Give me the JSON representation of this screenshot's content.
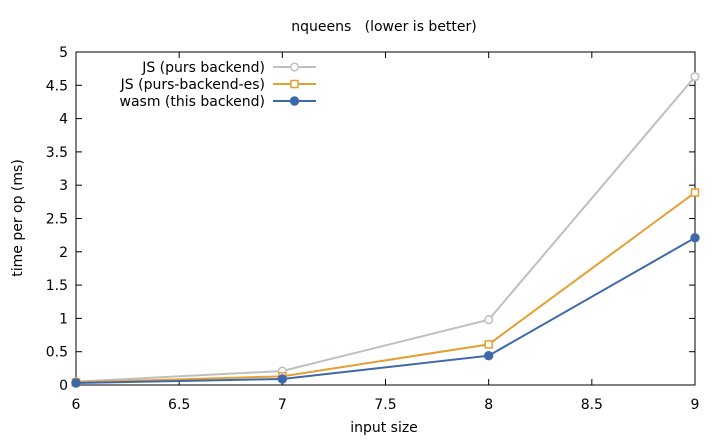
{
  "chart_data": {
    "type": "line",
    "title": "nqueens   (lower is better)",
    "xlabel": "input size",
    "ylabel": "time per op (ms)",
    "xlim": [
      6,
      9
    ],
    "ylim": [
      0,
      5
    ],
    "xticks": [
      "6",
      "6.5",
      "7",
      "7.5",
      "8",
      "8.5",
      "9"
    ],
    "yticks": [
      "0",
      "0.5",
      "1",
      "1.5",
      "2",
      "2.5",
      "3",
      "3.5",
      "4",
      "4.5",
      "5"
    ],
    "grid": false,
    "legend_position": "top-left",
    "series": [
      {
        "name": "JS (purs backend)",
        "x": [
          6,
          7,
          8,
          9
        ],
        "y": [
          0.05,
          0.21,
          0.98,
          4.63
        ],
        "color": "#bfbfbf",
        "marker": "circle-open"
      },
      {
        "name": "JS (purs-backend-es)",
        "x": [
          6,
          7,
          8,
          9
        ],
        "y": [
          0.04,
          0.13,
          0.61,
          2.89
        ],
        "color": "#e69f34",
        "marker": "square-open"
      },
      {
        "name": "wasm (this backend)",
        "x": [
          6,
          7,
          8,
          9
        ],
        "y": [
          0.03,
          0.09,
          0.44,
          2.21
        ],
        "color": "#3d69a8",
        "marker": "circle-filled"
      }
    ]
  }
}
